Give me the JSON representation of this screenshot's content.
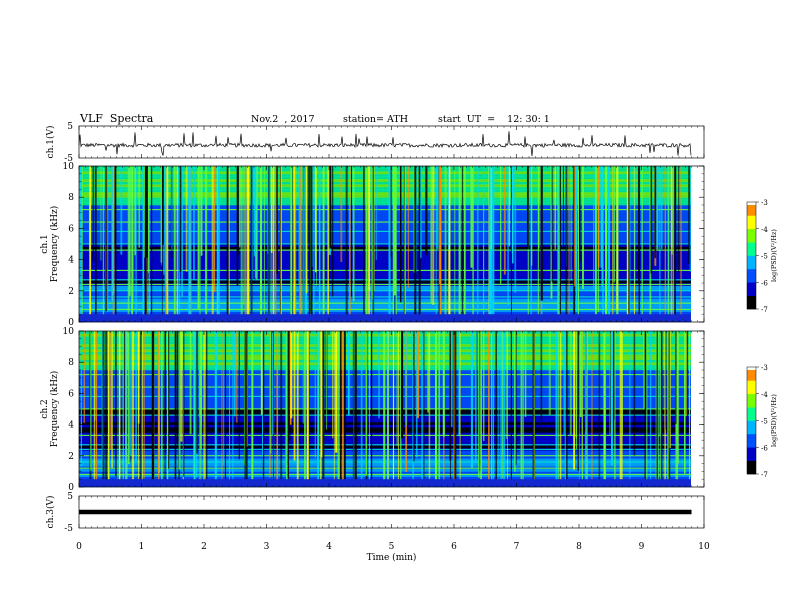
{
  "header": {
    "title": "VLF  Spectra",
    "date": "Nov.2  , 2017",
    "station": "station= ATH",
    "start": "start  UT  =    12: 30: 1"
  },
  "colors": {
    "trace": "#000000",
    "colormap": [
      "#000000",
      "#0000c8",
      "#0050ff",
      "#00b4ff",
      "#00ff8c",
      "#78ff00",
      "#ffff00",
      "#ff8c00",
      "#ff0000",
      "#ffffff"
    ]
  },
  "chart_data": [
    {
      "type": "line",
      "ylabel": "ch.1(V)",
      "ylim": [
        -5,
        5
      ],
      "yticks": [
        "5",
        "-5"
      ],
      "xlim": [
        0,
        10
      ],
      "description_of_data": "broadband waveform with mean near -1 V and sporadic spikes"
    },
    {
      "type": "heatmap",
      "ylabel": "ch.1\nFrequency  (kHz)",
      "ylabel_lines": [
        "ch.1",
        "Frequency  (kHz)"
      ],
      "ylim": [
        0,
        10
      ],
      "yticks": [
        "0",
        "2",
        "4",
        "6",
        "8",
        "10"
      ],
      "xlim": [
        0,
        10
      ],
      "colorbar": {
        "label": "log(PSD)(V²/Hz)",
        "range": [
          -7,
          -3
        ],
        "ticks": [
          "-3",
          "-4",
          "-5",
          "-6",
          "-7"
        ]
      }
    },
    {
      "type": "heatmap",
      "ylabel": "ch.2\nFrequency  (kHz)",
      "ylabel_lines": [
        "ch.2",
        "Frequency  (kHz)"
      ],
      "ylim": [
        0,
        10
      ],
      "yticks": [
        "0",
        "2",
        "4",
        "6",
        "8",
        "10"
      ],
      "xlim": [
        0,
        10
      ],
      "colorbar": {
        "label": "log(PSD)(V²/Hz)",
        "range": [
          -7,
          -3
        ],
        "ticks": [
          "-3",
          "-4",
          "-5",
          "-6",
          "-7"
        ]
      }
    },
    {
      "type": "line",
      "ylabel": "ch.3(V)",
      "ylim": [
        -5,
        5
      ],
      "yticks": [
        "5",
        "-5"
      ],
      "xlim": [
        0,
        10
      ],
      "x": [
        0,
        9.8
      ],
      "y": [
        0,
        0
      ],
      "xlabel": "Time  (min)",
      "xticks": [
        "0",
        "1",
        "2",
        "3",
        "4",
        "5",
        "6",
        "7",
        "8",
        "9",
        "10"
      ]
    }
  ]
}
